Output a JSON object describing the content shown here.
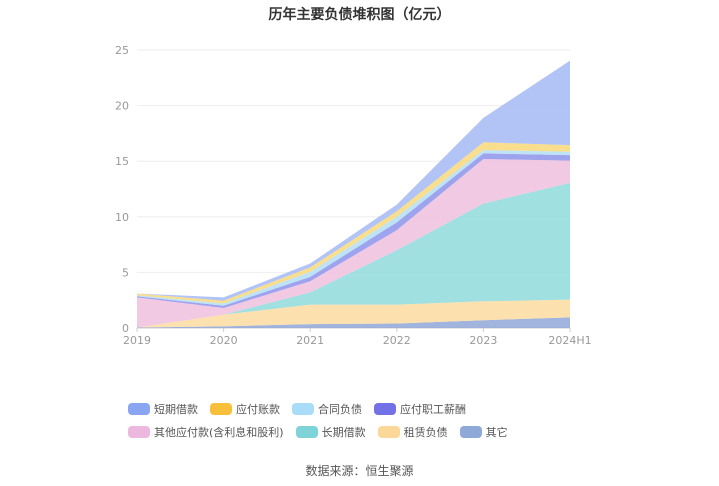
{
  "chart_data": {
    "type": "area",
    "stacked": true,
    "title": "历年主要负债堆积图（亿元）",
    "categories": [
      "2019",
      "2020",
      "2021",
      "2022",
      "2023",
      "2024H1"
    ],
    "y_ticks": [
      "0",
      "5",
      "10",
      "15",
      "20",
      "25"
    ],
    "ylim": [
      0,
      25
    ],
    "grid": true,
    "legend_position": "bottom",
    "series": [
      {
        "name": "其它",
        "color": "#91a7d8",
        "values": [
          0.05,
          0.15,
          0.35,
          0.4,
          0.7,
          0.95
        ]
      },
      {
        "name": "租赁负债",
        "color": "#fcdca0",
        "values": [
          0.0,
          1.05,
          1.75,
          1.7,
          1.7,
          1.6
        ]
      },
      {
        "name": "长期借款",
        "color": "#8fdbdc",
        "values": [
          0.0,
          0.0,
          1.1,
          4.9,
          8.8,
          10.5
        ]
      },
      {
        "name": "其他应付款(含利息和股利)",
        "color": "#eec0de",
        "values": [
          2.7,
          0.6,
          1.0,
          1.8,
          4.0,
          2.0
        ]
      },
      {
        "name": "应付职工薪酬",
        "color": "#8d93ea",
        "values": [
          0.1,
          0.2,
          0.4,
          0.7,
          0.5,
          0.5
        ]
      },
      {
        "name": "合同负债",
        "color": "#b3def5",
        "values": [
          0.1,
          0.2,
          0.45,
          0.5,
          0.3,
          0.3
        ]
      },
      {
        "name": "应付账款",
        "color": "#f8d879",
        "values": [
          0.15,
          0.25,
          0.4,
          0.5,
          0.7,
          0.6
        ]
      },
      {
        "name": "短期借款",
        "color": "#a4b8f5",
        "values": [
          0.0,
          0.3,
          0.35,
          0.6,
          2.2,
          7.6
        ]
      }
    ]
  },
  "legend": {
    "items": [
      {
        "label": "短期借款",
        "color": "#8aa6f3"
      },
      {
        "label": "应付账款",
        "color": "#f8bf3a"
      },
      {
        "label": "合同负债",
        "color": "#a9dcf8"
      },
      {
        "label": "应付职工薪酬",
        "color": "#7272e6"
      },
      {
        "label": "其他应付款(含利息和股利)",
        "color": "#ecb8de"
      },
      {
        "label": "长期借款",
        "color": "#7dd3d8"
      },
      {
        "label": "租赁负债",
        "color": "#fcd79a"
      },
      {
        "label": "其它",
        "color": "#8ea8d8"
      }
    ]
  },
  "footer": {
    "source": "数据来源：恒生聚源"
  }
}
